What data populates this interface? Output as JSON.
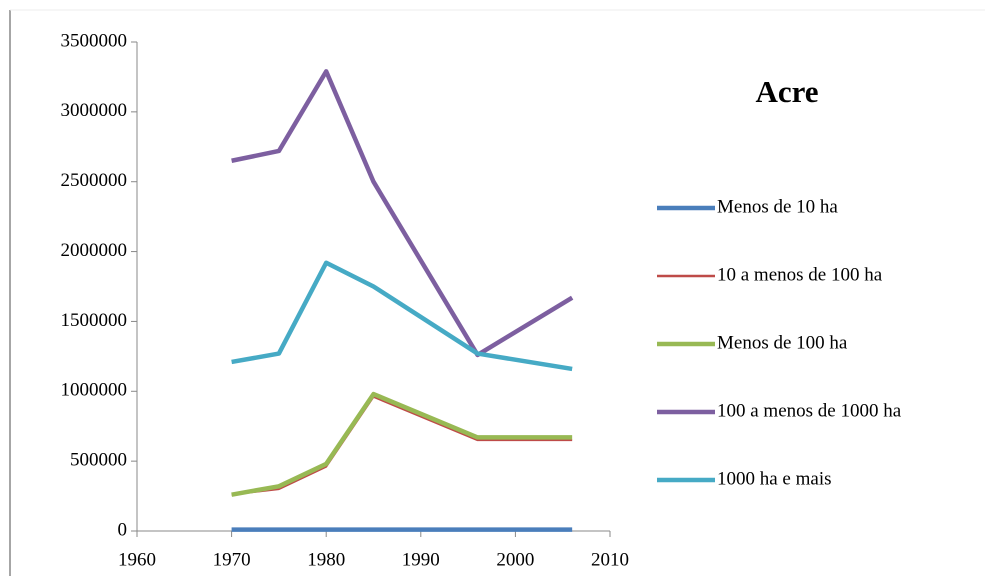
{
  "chart_data": {
    "type": "line",
    "title": "Acre",
    "x": [
      1970,
      1975,
      1980,
      1985,
      1996,
      2006
    ],
    "series": [
      {
        "name": "Menos de 10 ha",
        "color": "#4a7ebb",
        "values": [
          10000,
          10000,
          10000,
          10000,
          10000,
          10000
        ]
      },
      {
        "name": "10 a menos de 100 ha",
        "color": "#be4b48",
        "values": [
          260000,
          300000,
          460000,
          960000,
          650000,
          650000
        ]
      },
      {
        "name": "Menos de 100 ha",
        "color": "#98b954",
        "values": [
          260000,
          320000,
          480000,
          980000,
          670000,
          670000
        ]
      },
      {
        "name": "100 a menos de 1000 ha",
        "color": "#7d5fa0",
        "values": [
          2650000,
          2720000,
          3290000,
          2500000,
          1260000,
          1670000
        ]
      },
      {
        "name": "1000 ha e mais",
        "color": "#46aac5",
        "values": [
          1210000,
          1270000,
          1920000,
          1750000,
          1270000,
          1160000
        ]
      }
    ],
    "xlim": [
      1960,
      2010
    ],
    "xticks": [
      1960,
      1970,
      1980,
      1990,
      2000,
      2010
    ],
    "ylim": [
      0,
      3500000
    ],
    "yticks": [
      0,
      500000,
      1000000,
      1500000,
      2000000,
      2500000,
      3000000,
      3500000
    ]
  }
}
